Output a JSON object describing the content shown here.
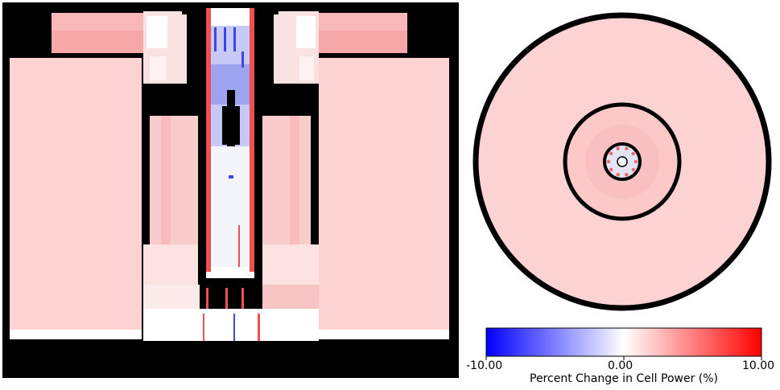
{
  "colorbar": {
    "label": "Percent Change in Cell Power (%)",
    "min": -10.0,
    "max": 10.0,
    "ticks": [
      "-10.00",
      "0.00",
      "10.00"
    ],
    "colormap": [
      "#0000ff",
      "#ffffff",
      "#ff0000"
    ]
  },
  "colors": {
    "structure": "#000000",
    "light_red": "#fdd2d2",
    "medium_red": "#f69a9a",
    "strong_red": "#ee5050",
    "light_blue": "#c6c8f6",
    "strong_blue": "#3f45e0",
    "white": "#ffffff"
  }
}
